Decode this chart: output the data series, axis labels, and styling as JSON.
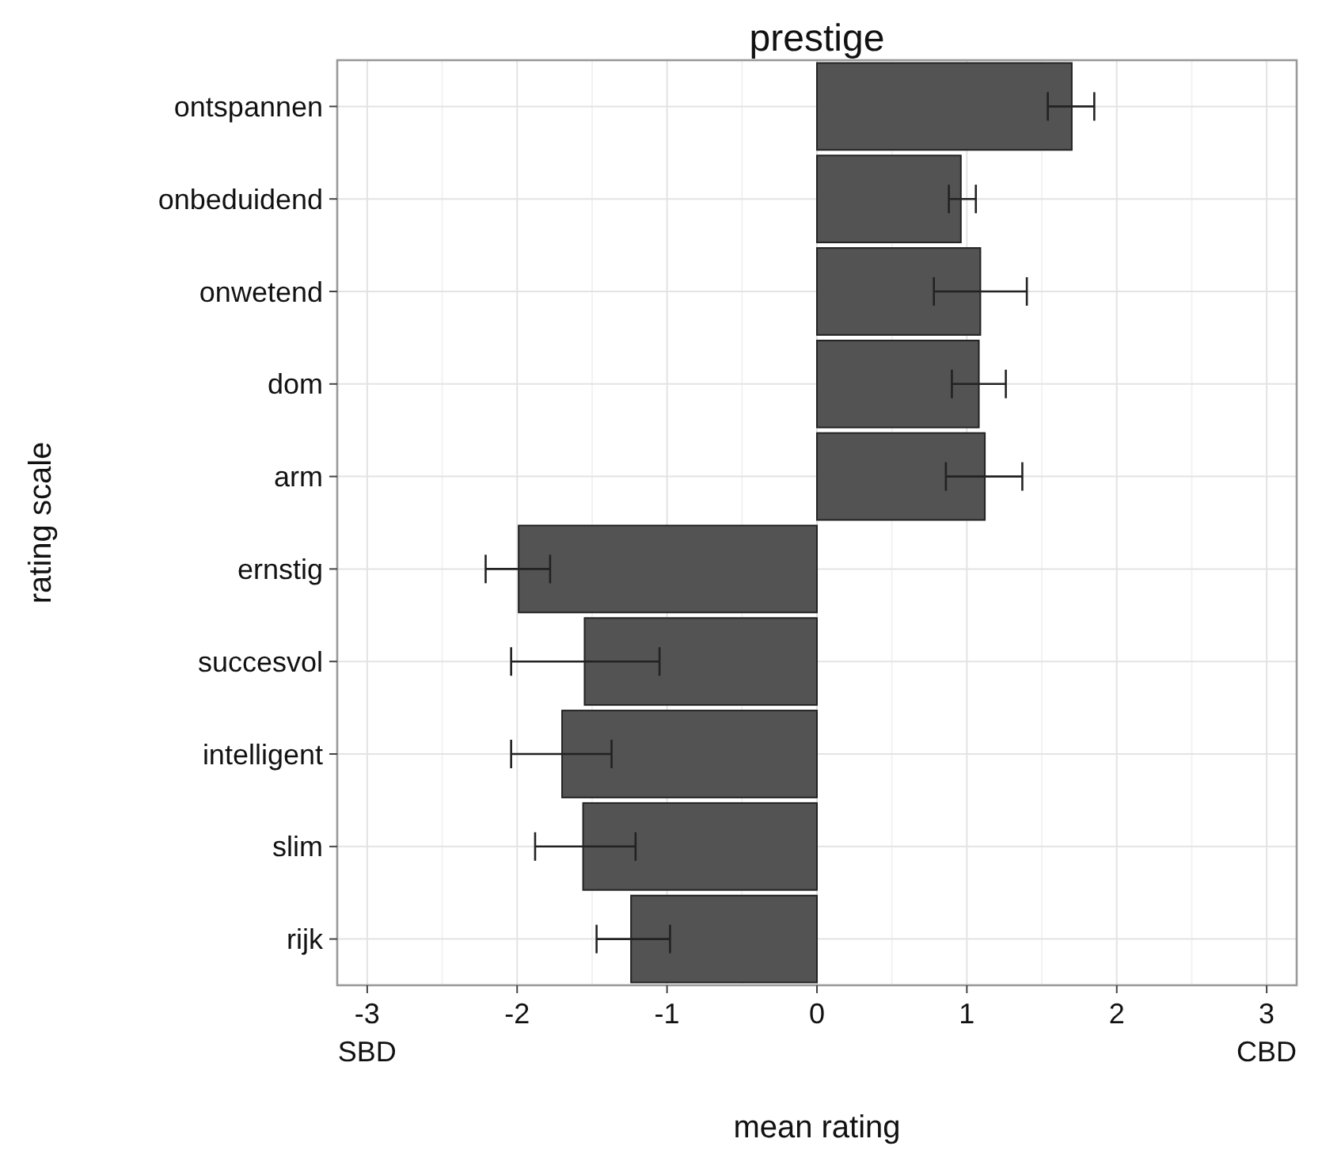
{
  "chart_data": {
    "type": "bar",
    "orientation": "horizontal",
    "title": "prestige",
    "xlabel": "mean rating",
    "ylabel": "rating scale",
    "categories": [
      "ontspannen",
      "onbeduidend",
      "onwetend",
      "dom",
      "arm",
      "ernstig",
      "succesvol",
      "intelligent",
      "slim",
      "rijk"
    ],
    "values": [
      1.7,
      0.96,
      1.09,
      1.08,
      1.12,
      -1.99,
      -1.55,
      -1.7,
      -1.56,
      -1.24
    ],
    "errors": [
      [
        1.54,
        1.85
      ],
      [
        0.88,
        1.06
      ],
      [
        0.78,
        1.4
      ],
      [
        0.9,
        1.26
      ],
      [
        0.86,
        1.37
      ],
      [
        -2.21,
        -1.78
      ],
      [
        -2.04,
        -1.05
      ],
      [
        -2.04,
        -1.37
      ],
      [
        -1.88,
        -1.21
      ],
      [
        -1.47,
        -0.98
      ]
    ],
    "color": "#535353",
    "xlim": [
      -3.2,
      3.2
    ],
    "xticks": [
      {
        "value": -3,
        "label": "-3\nSBD"
      },
      -2,
      -1,
      0,
      1,
      2,
      {
        "value": 3,
        "label": "3\nCBD"
      }
    ],
    "grid": true
  }
}
